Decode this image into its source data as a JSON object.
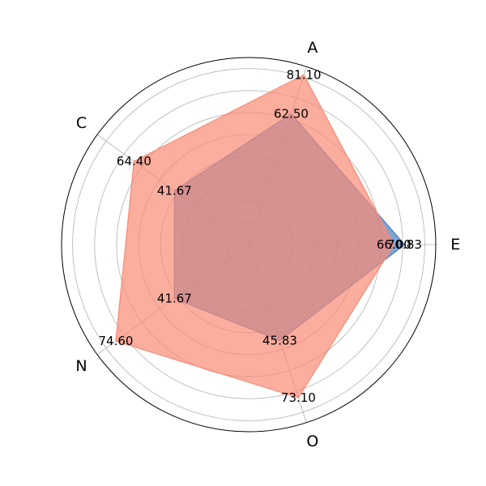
{
  "chart_data": {
    "type": "radar",
    "title": "",
    "axes": [
      "E",
      "A",
      "C",
      "N",
      "O"
    ],
    "rmax": 85,
    "rings": [
      10,
      20,
      30,
      40,
      50,
      60,
      70,
      80
    ],
    "grid": true,
    "series": [
      {
        "values": [
          70.83,
          62.5,
          41.67,
          41.67,
          45.83
        ],
        "labels": [
          "70.83",
          "62.50",
          "41.67",
          "41.67",
          "45.83"
        ],
        "color": "#4a7fc1",
        "opacity": 0.7
      },
      {
        "values": [
          66.0,
          81.1,
          64.4,
          74.6,
          73.1
        ],
        "labels": [
          "66.00",
          "81.10",
          "64.40",
          "74.60",
          "73.10"
        ],
        "color": "#fa8a75",
        "opacity": 0.7
      }
    ]
  }
}
